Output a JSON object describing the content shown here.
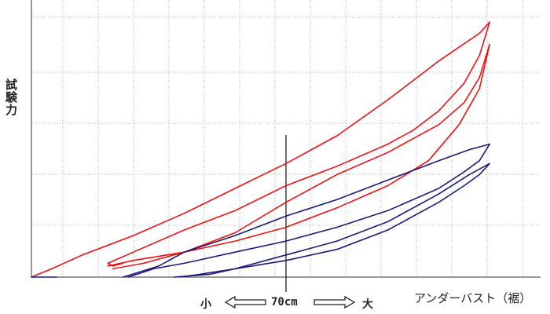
{
  "chart_data": {
    "type": "line",
    "title": "",
    "ylabel": "試験力",
    "xlabel": "アンダーバスト（裾）",
    "scale_annotation": {
      "small": "小",
      "center": "70cm",
      "large": "大"
    },
    "xlim": [
      0,
      100
    ],
    "ylim": [
      0,
      100
    ],
    "grid": true,
    "center_marker_x": 50,
    "series": [
      {
        "color": "#ee1111",
        "segments": [
          [
            [
              0,
              0
            ],
            [
              4,
              3
            ],
            [
              10,
              8
            ],
            [
              20,
              15
            ],
            [
              30,
              23
            ],
            [
              40,
              32
            ],
            [
              50,
              41
            ],
            [
              60,
              51
            ],
            [
              70,
              64
            ],
            [
              80,
              78
            ],
            [
              88,
              88
            ],
            [
              90,
              92
            ]
          ],
          [
            [
              90,
              92
            ],
            [
              88,
              80
            ],
            [
              85,
              70
            ],
            [
              80,
              60
            ],
            [
              75,
              53
            ],
            [
              70,
              48
            ],
            [
              60,
              40
            ],
            [
              50,
              33
            ],
            [
              40,
              24
            ],
            [
              30,
              17
            ],
            [
              20,
              9
            ],
            [
              15,
              5
            ],
            [
              16,
              4
            ],
            [
              18,
              5
            ]
          ],
          [
            [
              15,
              4
            ],
            [
              20,
              6
            ],
            [
              30,
              9
            ],
            [
              40,
              13
            ],
            [
              50,
              18
            ],
            [
              60,
              25
            ],
            [
              70,
              33
            ],
            [
              78,
              42
            ],
            [
              84,
              55
            ],
            [
              88,
              68
            ],
            [
              90,
              84
            ]
          ],
          [
            [
              90,
              84
            ],
            [
              88,
              72
            ],
            [
              85,
              63
            ],
            [
              80,
              55
            ],
            [
              70,
              45
            ],
            [
              60,
              37
            ],
            [
              50,
              27
            ],
            [
              40,
              16
            ],
            [
              30,
              9
            ],
            [
              22,
              5
            ],
            [
              16,
              3
            ]
          ]
        ]
      },
      {
        "color": "#1a1a7a",
        "segments": [
          [
            [
              0,
              0
            ],
            [
              5,
              0
            ],
            [
              2,
              0
            ]
          ],
          [
            [
              18,
              0
            ],
            [
              25,
              4
            ],
            [
              30,
              9
            ],
            [
              40,
              15
            ],
            [
              50,
              22
            ],
            [
              60,
              28
            ],
            [
              70,
              35
            ],
            [
              80,
              42
            ],
            [
              86,
              46
            ],
            [
              90,
              48
            ]
          ],
          [
            [
              90,
              48
            ],
            [
              89,
              45
            ],
            [
              88,
              42
            ],
            [
              85,
              38
            ],
            [
              80,
              32
            ],
            [
              70,
              24
            ],
            [
              60,
              18
            ],
            [
              50,
              13
            ],
            [
              40,
              9
            ],
            [
              30,
              5
            ],
            [
              24,
              3
            ],
            [
              19,
              0
            ]
          ],
          [
            [
              28,
              0
            ],
            [
              35,
              1
            ],
            [
              40,
              3
            ],
            [
              50,
              8
            ],
            [
              60,
              13
            ],
            [
              70,
              20
            ],
            [
              80,
              30
            ],
            [
              86,
              37
            ],
            [
              90,
              41
            ]
          ],
          [
            [
              90,
              41
            ],
            [
              88,
              37
            ],
            [
              85,
              33
            ],
            [
              80,
              27
            ],
            [
              70,
              17
            ],
            [
              60,
              10
            ],
            [
              50,
              6
            ],
            [
              40,
              3
            ],
            [
              33,
              1
            ],
            [
              29,
              0
            ]
          ]
        ]
      }
    ]
  }
}
